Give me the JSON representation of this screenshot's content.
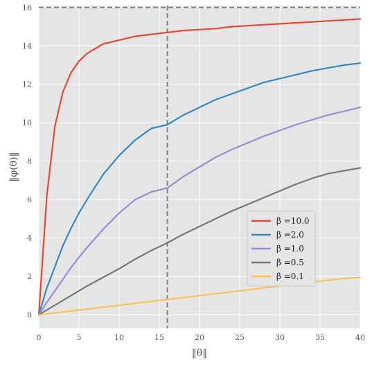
{
  "chart_data": {
    "type": "line",
    "xlabel": "‖θ‖",
    "ylabel": "‖φ(θ)‖",
    "xlim": [
      0,
      40
    ],
    "ylim": [
      -0.7,
      16.1
    ],
    "x_ticks": [
      "0",
      "5",
      "10",
      "15",
      "20",
      "25",
      "30",
      "35",
      "40"
    ],
    "y_ticks": [
      "0",
      "2",
      "4",
      "6",
      "8",
      "10",
      "12",
      "14",
      "16"
    ],
    "grid": true,
    "legend_position": "center-right",
    "reference_lines": {
      "horizontal_y": 16,
      "vertical_x": 16
    },
    "x": [
      0,
      1,
      2,
      3,
      4,
      5,
      6,
      8,
      10,
      12,
      14,
      16,
      18,
      20,
      22,
      24,
      26,
      28,
      30,
      32,
      34,
      36,
      38,
      40
    ],
    "series": [
      {
        "name": "β =10.0",
        "color": "#E24A33",
        "values": [
          0,
          6.2,
          9.8,
          11.6,
          12.6,
          13.2,
          13.6,
          14.1,
          14.3,
          14.5,
          14.6,
          14.7,
          14.8,
          14.85,
          14.9,
          15.0,
          15.05,
          15.1,
          15.15,
          15.2,
          15.25,
          15.3,
          15.35,
          15.4
        ]
      },
      {
        "name": "β =2.0",
        "color": "#348ABD",
        "values": [
          0,
          1.4,
          2.5,
          3.6,
          4.5,
          5.3,
          6.0,
          7.3,
          8.3,
          9.1,
          9.7,
          9.9,
          10.4,
          10.8,
          11.2,
          11.5,
          11.8,
          12.1,
          12.3,
          12.5,
          12.7,
          12.85,
          13.0,
          13.1
        ]
      },
      {
        "name": "β =1.0",
        "color": "#988ED5",
        "values": [
          0,
          0.65,
          1.25,
          1.85,
          2.45,
          3.0,
          3.5,
          4.45,
          5.3,
          6.0,
          6.4,
          6.6,
          7.2,
          7.7,
          8.2,
          8.6,
          8.95,
          9.3,
          9.6,
          9.9,
          10.15,
          10.4,
          10.6,
          10.8
        ]
      },
      {
        "name": "β =0.5",
        "color": "#777777",
        "values": [
          0,
          0.25,
          0.5,
          0.75,
          1.0,
          1.25,
          1.5,
          1.95,
          2.4,
          2.9,
          3.35,
          3.75,
          4.2,
          4.6,
          5.0,
          5.4,
          5.75,
          6.1,
          6.45,
          6.8,
          7.1,
          7.35,
          7.5,
          7.65
        ]
      },
      {
        "name": "β =0.1",
        "color": "#FBC15E",
        "values": [
          0,
          0.05,
          0.1,
          0.15,
          0.2,
          0.25,
          0.3,
          0.4,
          0.5,
          0.6,
          0.7,
          0.8,
          0.9,
          1.0,
          1.1,
          1.2,
          1.3,
          1.4,
          1.5,
          1.6,
          1.7,
          1.8,
          1.9,
          1.95
        ]
      }
    ]
  }
}
